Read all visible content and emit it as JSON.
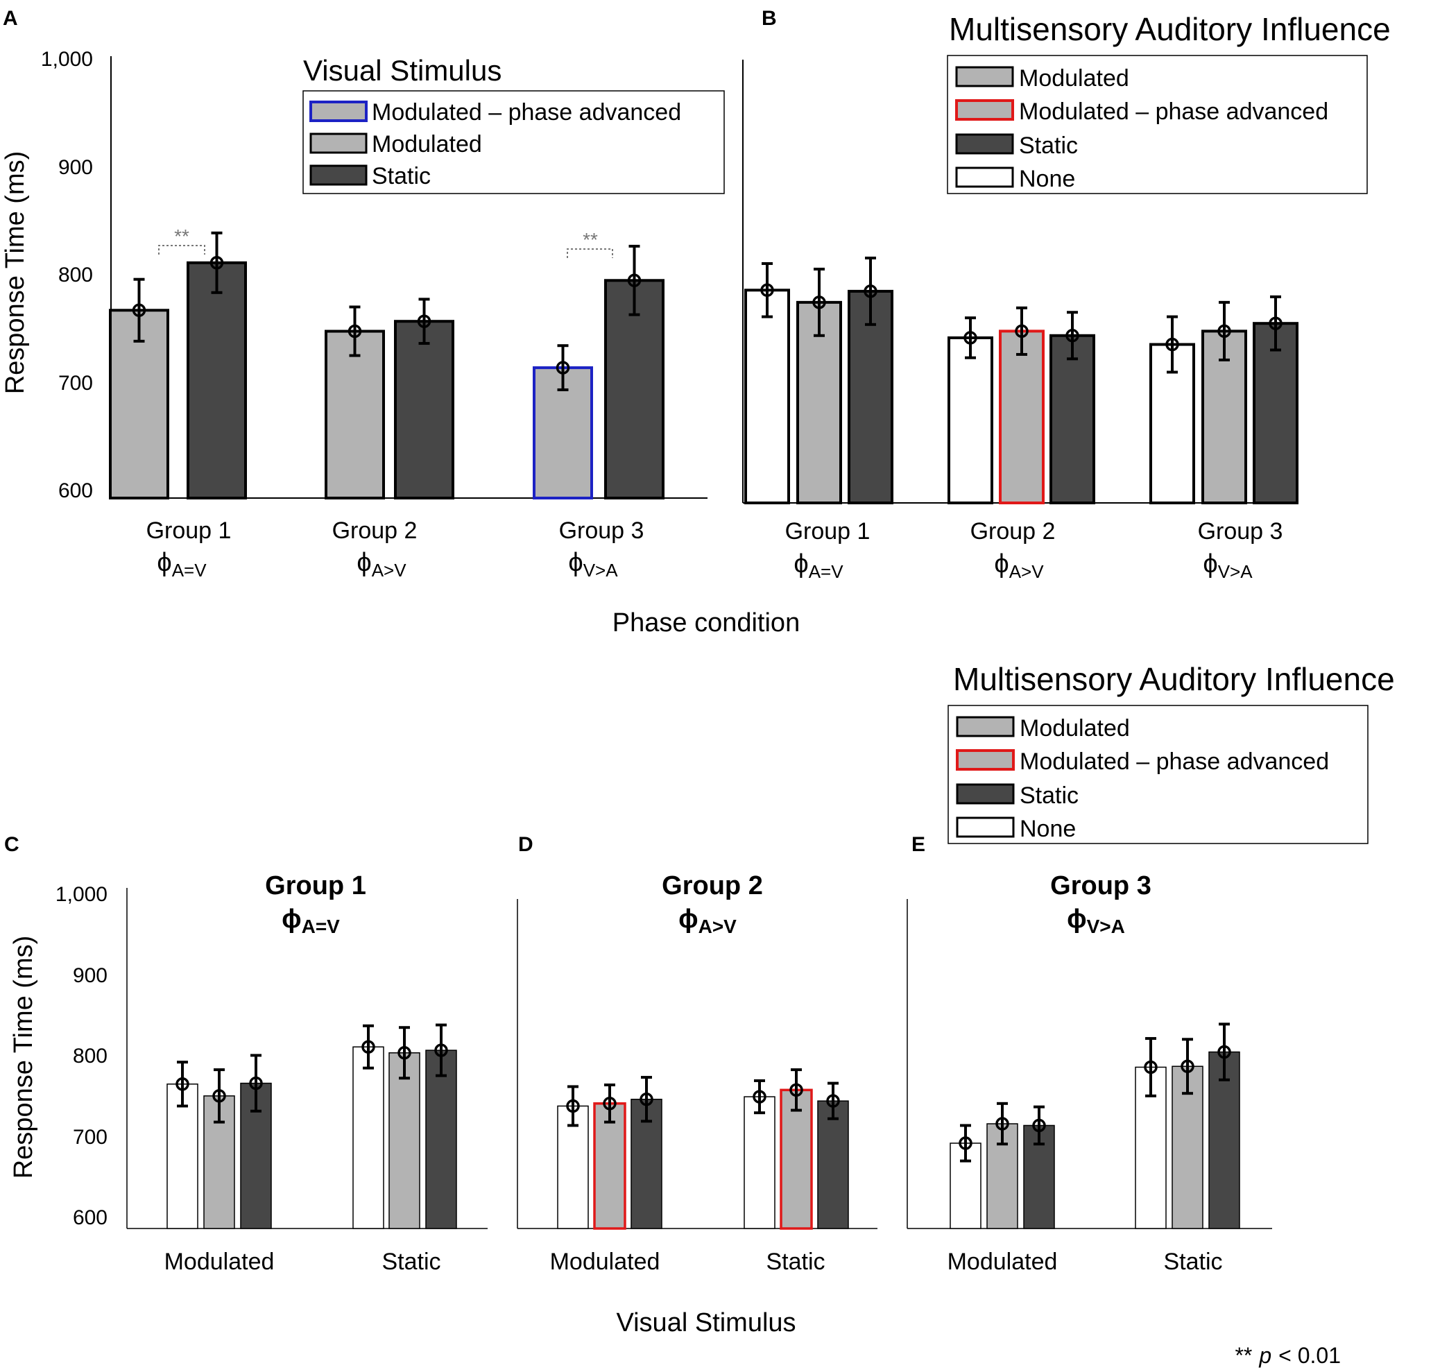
{
  "colors": {
    "none_fill": "#ffffff",
    "modulated_fill": "#b3b3b3",
    "static_fill": "#474747",
    "bar_edge": "#000000",
    "blue_edge": "#1c22c4",
    "red_edge": "#e01919",
    "bracket": "#777777",
    "axis": "#000000"
  },
  "texts": {
    "xlabel_ab": "Phase condition",
    "xlabel_cde": "Visual Stimulus",
    "footnote_stars": "**",
    "footnote_p": "p",
    "footnote_rest": "< 0.01",
    "sig_marker": "**"
  },
  "chart_data": [
    {
      "id": "A",
      "panel_label": "A",
      "type": "bar",
      "ylabel": "Response Time (ms)",
      "ylim": [
        600,
        1000
      ],
      "yticks": [
        600,
        700,
        800,
        900,
        1000
      ],
      "ytick_labels": [
        "600",
        "700",
        "800",
        "900",
        "1,000"
      ],
      "categories": [
        {
          "name": "Group 1",
          "phi": "ϕ",
          "sub": "A=V"
        },
        {
          "name": "Group 2",
          "phi": "ϕ",
          "sub": "A>V"
        },
        {
          "name": "Group 3",
          "phi": "ϕ",
          "sub": "V>A"
        }
      ],
      "legend_title": "Visual Stimulus",
      "legend": [
        {
          "label": "Modulated – phase advanced",
          "fill": "modulated",
          "edge": "blue"
        },
        {
          "label": "Modulated",
          "fill": "modulated",
          "edge": "black"
        },
        {
          "label": "Static",
          "fill": "static",
          "edge": "black"
        }
      ],
      "bars": [
        {
          "cat": 0,
          "fill": "modulated",
          "edge": "black",
          "value": 770,
          "err": 28
        },
        {
          "cat": 0,
          "fill": "static",
          "edge": "black",
          "value": 813,
          "err": 27
        },
        {
          "cat": 1,
          "fill": "modulated",
          "edge": "black",
          "value": 751,
          "err": 22
        },
        {
          "cat": 1,
          "fill": "static",
          "edge": "black",
          "value": 760,
          "err": 20
        },
        {
          "cat": 2,
          "fill": "modulated",
          "edge": "blue",
          "value": 718,
          "err": 20
        },
        {
          "cat": 2,
          "fill": "static",
          "edge": "black",
          "value": 797,
          "err": 31
        }
      ],
      "significance": [
        {
          "bars": [
            0,
            1
          ],
          "label": "**"
        },
        {
          "bars": [
            4,
            5
          ],
          "label": "**"
        }
      ]
    },
    {
      "id": "B",
      "panel_label": "B",
      "type": "bar",
      "ylim": [
        600,
        1000
      ],
      "categories": [
        {
          "name": "Group 1",
          "phi": "ϕ",
          "sub": "A=V"
        },
        {
          "name": "Group 2",
          "phi": "ϕ",
          "sub": "A>V"
        },
        {
          "name": "Group 3",
          "phi": "ϕ",
          "sub": "V>A"
        }
      ],
      "legend_title": "Multisensory Auditory Influence",
      "legend": [
        {
          "label": "Modulated",
          "fill": "modulated",
          "edge": "black"
        },
        {
          "label": "Modulated – phase advanced",
          "fill": "modulated",
          "edge": "red"
        },
        {
          "label": "Static",
          "fill": "static",
          "edge": "black"
        },
        {
          "label": "None",
          "fill": "none",
          "edge": "black"
        }
      ],
      "bars": [
        {
          "cat": 0,
          "fill": "none",
          "edge": "black",
          "value": 792,
          "err": 24
        },
        {
          "cat": 0,
          "fill": "modulated",
          "edge": "black",
          "value": 781,
          "err": 30
        },
        {
          "cat": 0,
          "fill": "static",
          "edge": "black",
          "value": 791,
          "err": 30
        },
        {
          "cat": 1,
          "fill": "none",
          "edge": "black",
          "value": 749,
          "err": 18
        },
        {
          "cat": 1,
          "fill": "modulated",
          "edge": "red",
          "value": 755,
          "err": 21
        },
        {
          "cat": 1,
          "fill": "static",
          "edge": "black",
          "value": 751,
          "err": 21
        },
        {
          "cat": 2,
          "fill": "none",
          "edge": "black",
          "value": 743,
          "err": 25
        },
        {
          "cat": 2,
          "fill": "modulated",
          "edge": "black",
          "value": 755,
          "err": 26
        },
        {
          "cat": 2,
          "fill": "static",
          "edge": "black",
          "value": 762,
          "err": 24
        }
      ]
    },
    {
      "id": "C",
      "panel_label": "C",
      "type": "bar",
      "title": "Group 1",
      "phi": "ϕ",
      "sub": "A=V",
      "ylabel": "Response Time (ms)",
      "ylim": [
        600,
        1000
      ],
      "yticks": [
        600,
        700,
        800,
        900,
        1000
      ],
      "ytick_labels": [
        "600",
        "700",
        "800",
        "900",
        "1,000"
      ],
      "categories": [
        "Modulated",
        "Static"
      ],
      "bars": [
        {
          "cat": 0,
          "fill": "none",
          "edge": "black",
          "value": 771,
          "err": 26
        },
        {
          "cat": 0,
          "fill": "modulated",
          "edge": "black",
          "value": 757,
          "err": 31
        },
        {
          "cat": 0,
          "fill": "static",
          "edge": "black",
          "value": 772,
          "err": 33
        },
        {
          "cat": 1,
          "fill": "none",
          "edge": "black",
          "value": 815,
          "err": 25
        },
        {
          "cat": 1,
          "fill": "modulated",
          "edge": "black",
          "value": 808,
          "err": 30
        },
        {
          "cat": 1,
          "fill": "static",
          "edge": "black",
          "value": 811,
          "err": 30
        }
      ]
    },
    {
      "id": "D",
      "panel_label": "D",
      "type": "bar",
      "title": "Group 2",
      "phi": "ϕ",
      "sub": "A>V",
      "ylim": [
        600,
        1000
      ],
      "categories": [
        "Modulated",
        "Static"
      ],
      "bars": [
        {
          "cat": 0,
          "fill": "none",
          "edge": "black",
          "value": 745,
          "err": 23
        },
        {
          "cat": 0,
          "fill": "modulated",
          "edge": "red",
          "value": 748,
          "err": 22
        },
        {
          "cat": 0,
          "fill": "static",
          "edge": "black",
          "value": 753,
          "err": 26
        },
        {
          "cat": 1,
          "fill": "none",
          "edge": "black",
          "value": 756,
          "err": 19
        },
        {
          "cat": 1,
          "fill": "modulated",
          "edge": "red",
          "value": 764,
          "err": 24
        },
        {
          "cat": 1,
          "fill": "static",
          "edge": "black",
          "value": 751,
          "err": 21
        }
      ]
    },
    {
      "id": "E",
      "panel_label": "E",
      "type": "bar",
      "title": "Group 3",
      "phi": "ϕ",
      "sub": "V>A",
      "ylim": [
        600,
        1000
      ],
      "categories": [
        "Modulated",
        "Static"
      ],
      "legend_title": "Multisensory Auditory Influence",
      "legend": [
        {
          "label": "Modulated",
          "fill": "modulated",
          "edge": "black"
        },
        {
          "label": "Modulated – phase advanced",
          "fill": "modulated",
          "edge": "red"
        },
        {
          "label": "Static",
          "fill": "static",
          "edge": "black"
        },
        {
          "label": "None",
          "fill": "none",
          "edge": "black"
        }
      ],
      "bars": [
        {
          "cat": 0,
          "fill": "none",
          "edge": "black",
          "value": 701,
          "err": 21
        },
        {
          "cat": 0,
          "fill": "modulated",
          "edge": "black",
          "value": 724,
          "err": 24
        },
        {
          "cat": 0,
          "fill": "static",
          "edge": "black",
          "value": 722,
          "err": 22
        },
        {
          "cat": 1,
          "fill": "none",
          "edge": "black",
          "value": 791,
          "err": 34
        },
        {
          "cat": 1,
          "fill": "modulated",
          "edge": "black",
          "value": 792,
          "err": 32
        },
        {
          "cat": 1,
          "fill": "static",
          "edge": "black",
          "value": 809,
          "err": 33
        }
      ]
    }
  ]
}
